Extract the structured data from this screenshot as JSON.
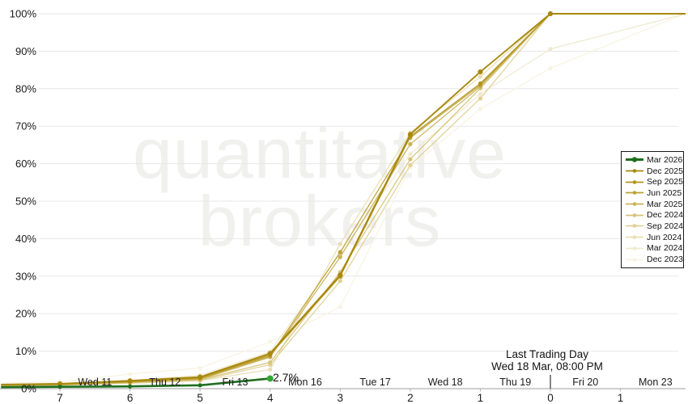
{
  "chart_data": {
    "type": "line",
    "watermark": {
      "line1": "quantitative",
      "line2": "brokers"
    },
    "annotation": {
      "title": "Last Trading Day",
      "subtitle": "Wed 18 Mar, 08:00 PM",
      "at_day": 0
    },
    "latest_value_label": "2.7%",
    "ylim": [
      0,
      100
    ],
    "y_tick_values": [
      0,
      10,
      20,
      30,
      40,
      50,
      60,
      70,
      80,
      90,
      100
    ],
    "y_tick_labels": [
      "0%",
      "10%",
      "20%",
      "30%",
      "40%",
      "50%",
      "60%",
      "70%",
      "80%",
      "90%",
      "100%"
    ],
    "x_day_ticks": {
      "days": [
        7,
        6,
        5,
        4,
        3,
        2,
        1,
        0,
        -1
      ],
      "labels": [
        "7",
        "6",
        "5",
        "4",
        "3",
        "2",
        "1",
        "0",
        "1"
      ]
    },
    "x_date_labels": {
      "days": [
        6.5,
        5.5,
        4.5,
        3.5,
        2.5,
        1.5,
        0.5,
        -0.5,
        -1.5
      ],
      "labels": [
        "Wed 11",
        "Thu 12",
        "Fri 13",
        "Mon 16",
        "Tue 17",
        "Wed 18",
        "Thu 19",
        "Fri 20",
        "Mon 23"
      ]
    },
    "series": [
      {
        "name": "Mar 2026",
        "color": "#1e6f1e",
        "marker_end_color": "#32a532",
        "x": [
          7.84,
          7,
          6,
          5,
          4
        ],
        "y": [
          0.4,
          0.5,
          0.6,
          0.9,
          2.7
        ]
      },
      {
        "name": "Dec 2025",
        "color": "#a8880f",
        "x": [
          7.84,
          7,
          6,
          5,
          4,
          3,
          2,
          1,
          0,
          -1.93
        ],
        "y": [
          1.1,
          1.3,
          2.1,
          3.1,
          9.4,
          30.3,
          67.8,
          84.5,
          100,
          100
        ]
      },
      {
        "name": "Sep 2025",
        "color": "#b2941d",
        "x": [
          7.84,
          7,
          6,
          5,
          4,
          3,
          2,
          1,
          0,
          -1.93
        ],
        "y": [
          1.0,
          1.2,
          1.9,
          2.9,
          9.0,
          29.9,
          67.3,
          81.4,
          100,
          100
        ]
      },
      {
        "name": "Jun 2025",
        "color": "#bda235",
        "x": [
          7.84,
          7,
          6,
          5,
          4,
          3,
          2,
          1,
          0,
          -1.93
        ],
        "y": [
          0.9,
          1.1,
          1.8,
          2.7,
          8.7,
          36.4,
          66.9,
          81.0,
          100,
          100
        ]
      },
      {
        "name": "Mar 2025",
        "color": "#cab257",
        "x": [
          7.84,
          7,
          6,
          5,
          4,
          3,
          2,
          1,
          0,
          -1.93
        ],
        "y": [
          0.8,
          1.0,
          1.7,
          2.5,
          8.4,
          35.1,
          65.2,
          80.6,
          100,
          100
        ]
      },
      {
        "name": "Dec 2024",
        "color": "#d6c47b",
        "x": [
          7.84,
          7,
          6,
          5,
          4,
          3,
          2,
          1,
          0,
          -1.93
        ],
        "y": [
          0.8,
          1.0,
          1.6,
          2.4,
          7.0,
          31.1,
          61.2,
          80.1,
          100,
          100
        ]
      },
      {
        "name": "Sep 2024",
        "color": "#e0d096",
        "x": [
          7.84,
          7,
          6,
          5,
          4,
          3,
          2,
          1,
          0,
          -1.93
        ],
        "y": [
          0.7,
          0.9,
          1.5,
          2.2,
          6.4,
          28.7,
          59.6,
          77.4,
          100,
          100
        ]
      },
      {
        "name": "Jun 2024",
        "color": "#e9ddb2",
        "x": [
          7.84,
          7,
          6,
          5,
          4,
          3,
          2,
          1,
          0,
          -1.93
        ],
        "y": [
          0.7,
          0.9,
          1.4,
          2.1,
          5.1,
          38.6,
          68.3,
          83.2,
          100,
          100
        ]
      },
      {
        "name": "Mar 2024",
        "color": "#f0e9cf",
        "x": [
          7.84,
          7,
          6,
          5,
          4,
          3,
          2,
          1,
          0,
          -1.93
        ],
        "y": [
          1.2,
          1.4,
          2.2,
          3.6,
          9.9,
          36.0,
          62.6,
          78.6,
          90.6,
          100
        ]
      },
      {
        "name": "Dec 2023",
        "color": "#f7f2e2",
        "x": [
          7.84,
          7,
          6,
          5,
          4,
          3,
          2,
          1,
          0,
          -1.93
        ],
        "y": [
          1.5,
          1.8,
          3.9,
          5.5,
          12.5,
          21.8,
          59.0,
          74.6,
          85.5,
          100
        ]
      }
    ],
    "legend_position": "right",
    "grid": "horizontal",
    "colors": {
      "axis": "#b0b0b0",
      "gridline": "#e7e7e7",
      "text": "#1b1b1b"
    }
  }
}
